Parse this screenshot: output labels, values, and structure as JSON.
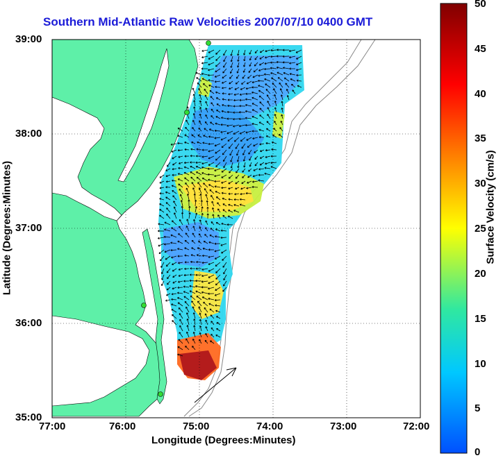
{
  "title": "Southern Mid-Atlantic Raw Velocities 2007/07/10 0400 GMT",
  "x_axis": {
    "label": "Longitude (Degrees:Minutes)",
    "ticks": [
      "77:00",
      "76:00",
      "75:00",
      "74:00",
      "73:00",
      "72:00"
    ]
  },
  "y_axis": {
    "label": "Latitude (Degrees:Minutes)",
    "ticks": [
      "39:00",
      "38:00",
      "37:00",
      "36:00",
      "35:00"
    ]
  },
  "colorbar": {
    "label": "Surface Velocity (cm/s)",
    "ticks": [
      "50",
      "45",
      "40",
      "35",
      "30",
      "25",
      "20",
      "15",
      "10",
      "5",
      "0"
    ],
    "colors": [
      "#0050ff",
      "#00c8ff",
      "#30e8a0",
      "#ffff00",
      "#ff8000",
      "#ff0000",
      "#800000"
    ]
  },
  "colors": {
    "land": "#5ef0a8",
    "water": "#ffffff",
    "title": "#1a1ad8",
    "arrow": "#000000",
    "station": "#33dd33"
  }
}
